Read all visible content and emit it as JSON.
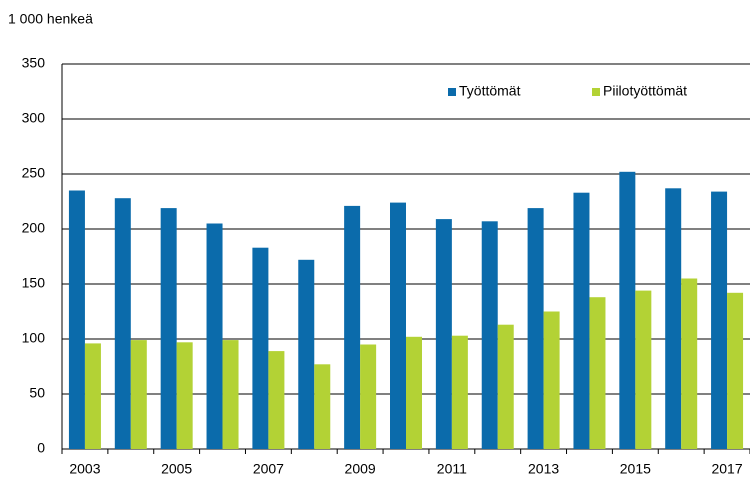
{
  "chart_data": {
    "type": "bar",
    "title": "1 000 henkeä",
    "categories": [
      "2003",
      null,
      "2005",
      null,
      "2007",
      null,
      "2009",
      null,
      "2011",
      null,
      "2013",
      null,
      "2015",
      null,
      "2017"
    ],
    "series": [
      {
        "name": "Työttömät",
        "color": "#0b6bab",
        "values": [
          235,
          228,
          219,
          205,
          183,
          172,
          221,
          224,
          209,
          207,
          219,
          233,
          252,
          237,
          234
        ]
      },
      {
        "name": "Piilotyöttömät",
        "color": "#b3d235",
        "values": [
          96,
          99,
          97,
          99,
          89,
          77,
          95,
          102,
          103,
          113,
          125,
          138,
          144,
          155,
          142
        ]
      }
    ],
    "ylim": [
      0,
      350
    ],
    "yticks": [
      0,
      50,
      100,
      150,
      200,
      250,
      300,
      350
    ],
    "grid": true,
    "legend": "top-right"
  }
}
